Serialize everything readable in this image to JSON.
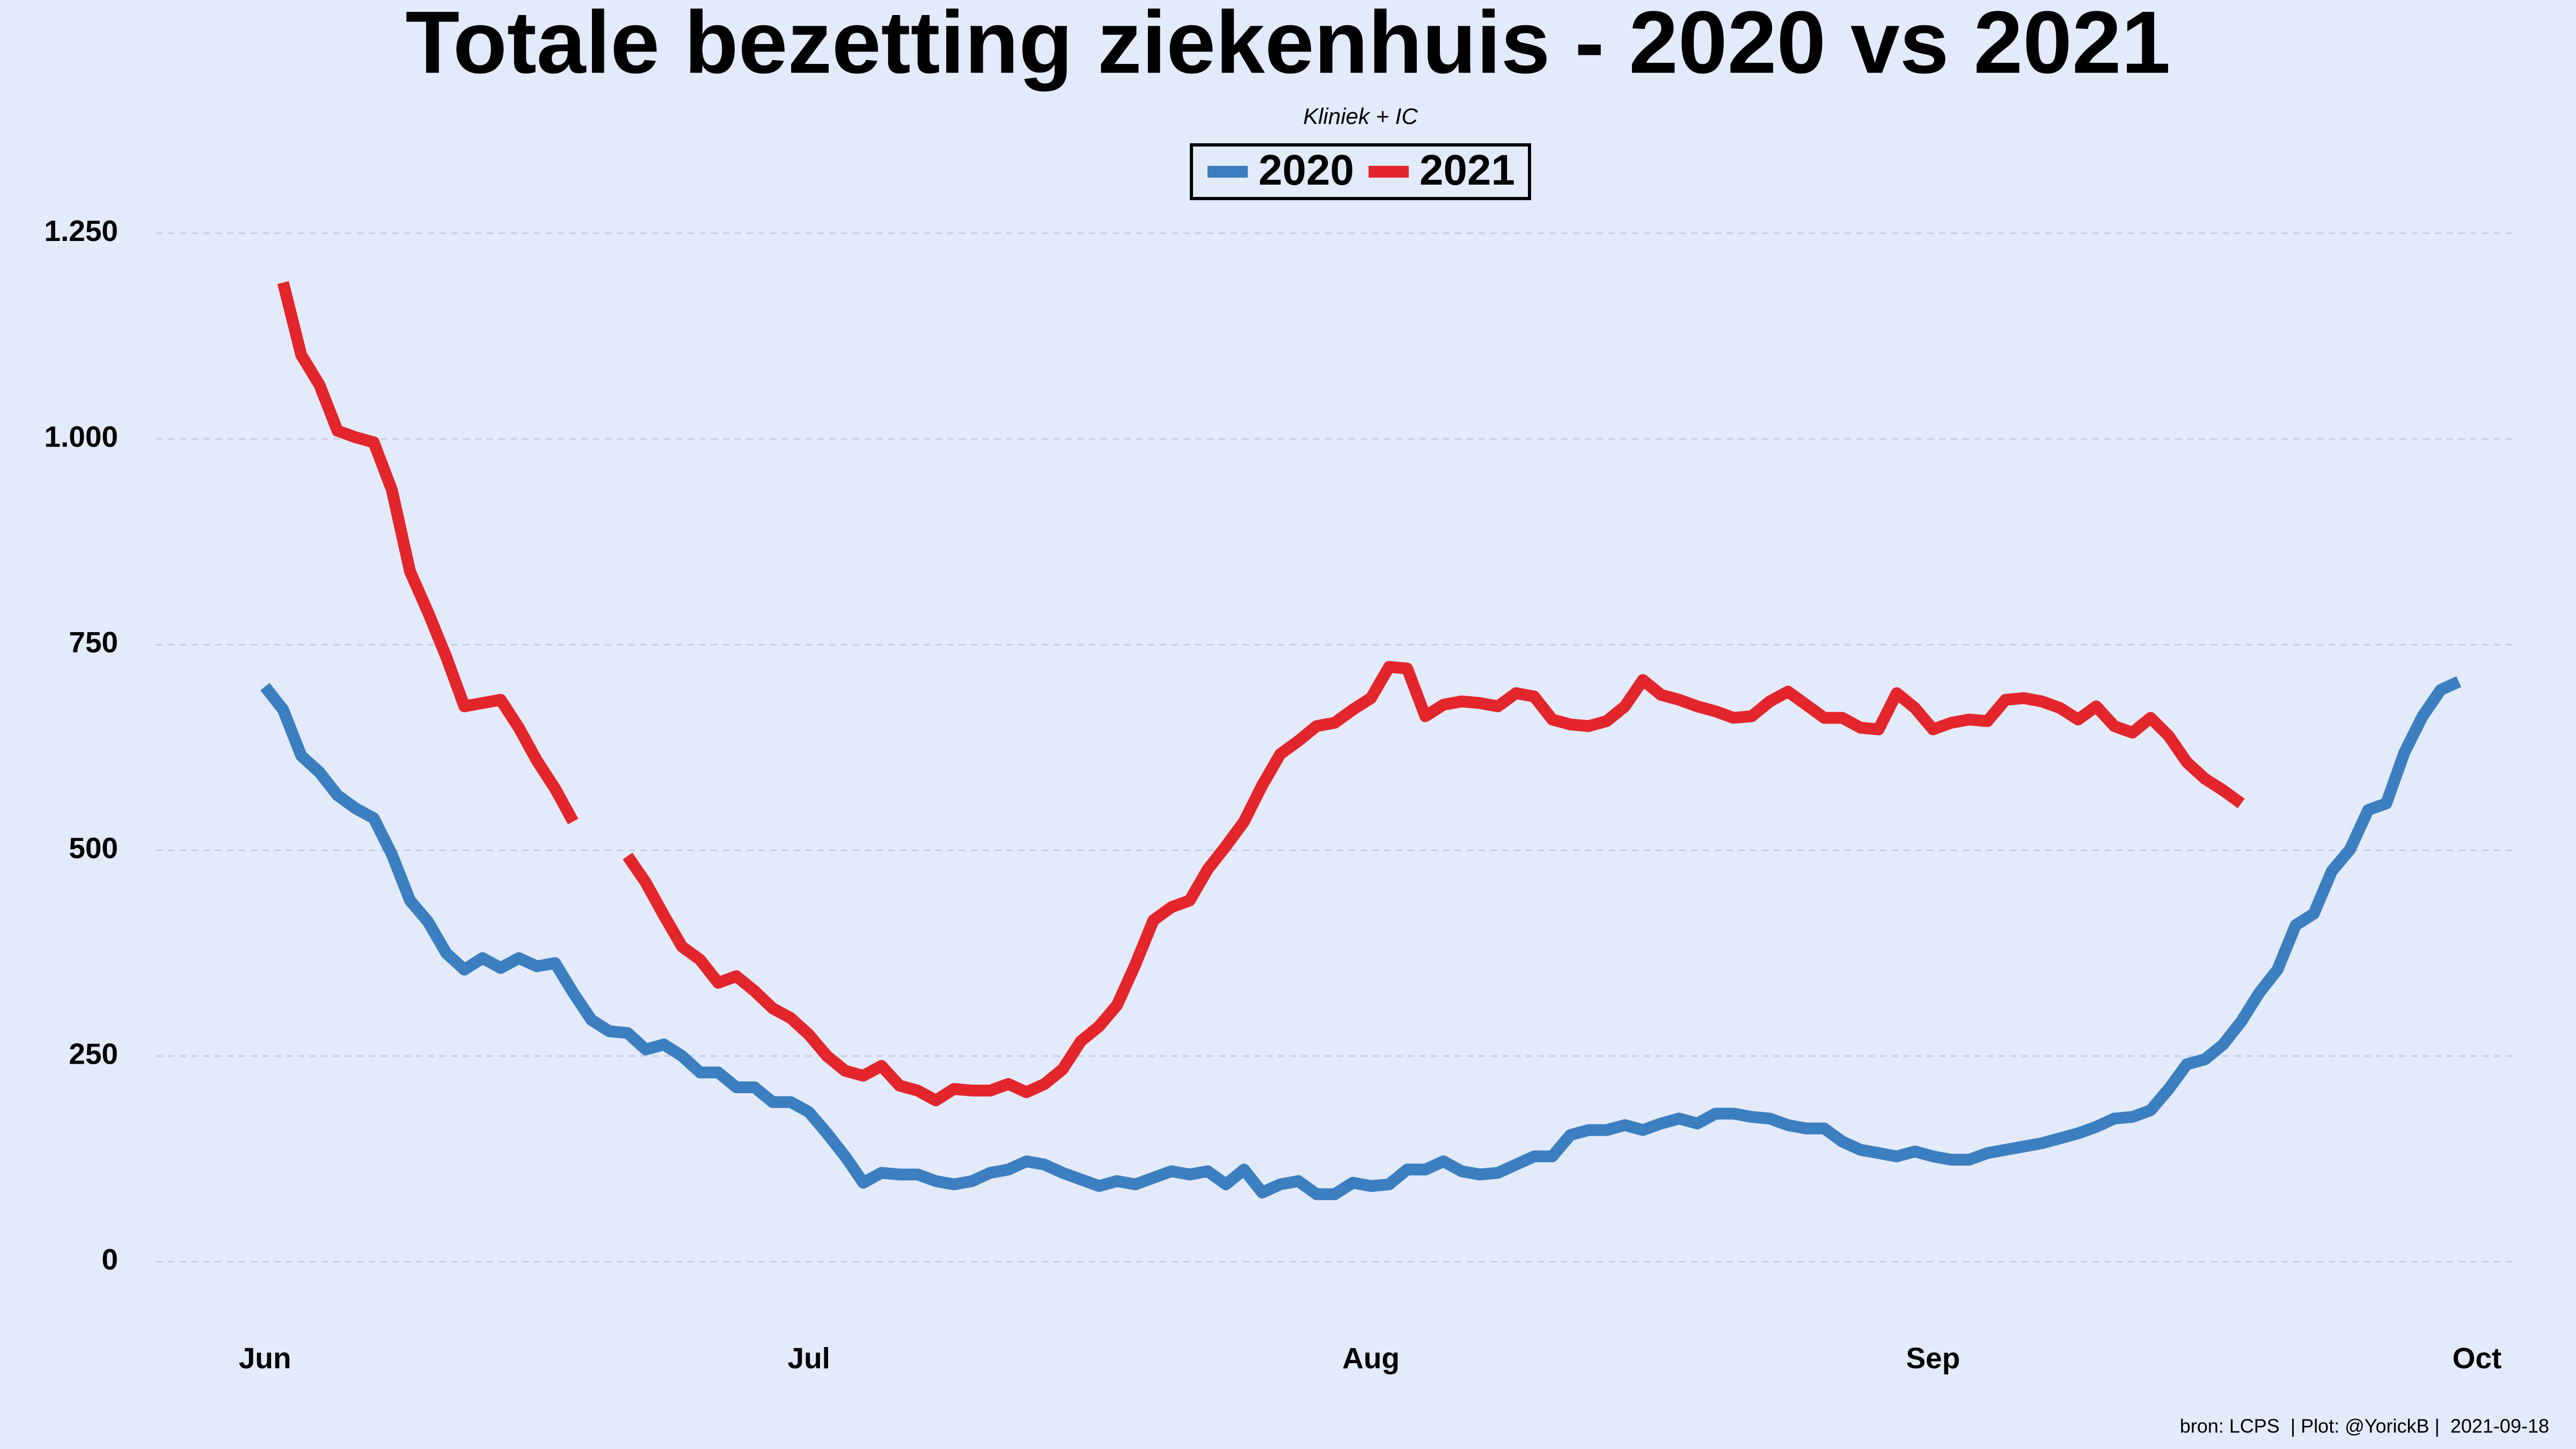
{
  "chart_data": {
    "type": "line",
    "title": "Totale bezetting ziekenhuis - 2020 vs 2021",
    "subtitle": "Kliniek + IC",
    "caption": "bron: LCPS  | Plot: @YorickB |  2021-09-18",
    "x": [
      0,
      1,
      2,
      3,
      4,
      5,
      6,
      7,
      8,
      9,
      10,
      11,
      12,
      13,
      14,
      15,
      16,
      17,
      18,
      19,
      20,
      21,
      22,
      23,
      24,
      25,
      26,
      27,
      28,
      29,
      30,
      31,
      32,
      33,
      34,
      35,
      36,
      37,
      38,
      39,
      40,
      41,
      42,
      43,
      44,
      45,
      46,
      47,
      48,
      49,
      50,
      51,
      52,
      53,
      54,
      55,
      56,
      57,
      58,
      59,
      60,
      61,
      62,
      63,
      64,
      65,
      66,
      67,
      68,
      69,
      70,
      71,
      72,
      73,
      74,
      75,
      76,
      77,
      78,
      79,
      80,
      81,
      82,
      83,
      84,
      85,
      86,
      87,
      88,
      89,
      90,
      91,
      92,
      93,
      94,
      95,
      96,
      97,
      98,
      99,
      100,
      101,
      102,
      103,
      104,
      105,
      106,
      107,
      108,
      109,
      110,
      111,
      112,
      113,
      114,
      115,
      116,
      117,
      118,
      119,
      120,
      121
    ],
    "series": [
      {
        "name": "2020",
        "color": "#3c7fc0",
        "values": [
          699,
          671,
          615,
          595,
          567,
          551,
          539,
          495,
          439,
          413,
          375,
          355,
          369,
          357,
          369,
          359,
          363,
          327,
          294,
          280,
          278,
          258,
          264,
          250,
          230,
          230,
          212,
          212,
          194,
          194,
          182,
          156,
          128,
          96,
          108,
          106,
          106,
          98,
          94,
          98,
          108,
          112,
          122,
          118,
          108,
          100,
          92,
          98,
          94,
          102,
          110,
          106,
          110,
          94,
          112,
          84,
          94,
          98,
          82,
          82,
          96,
          92,
          94,
          112,
          112,
          122,
          110,
          106,
          108,
          118,
          128,
          128,
          154,
          160,
          160,
          166,
          160,
          168,
          174,
          168,
          180,
          180,
          176,
          174,
          166,
          162,
          162,
          146,
          136,
          132,
          128,
          134,
          128,
          124,
          124,
          132,
          136,
          140,
          144,
          150,
          156,
          164,
          174,
          176,
          184,
          210,
          240,
          246,
          264,
          292,
          327,
          355,
          409,
          423,
          475,
          501,
          549,
          557,
          619,
          663,
          695,
          705
        ]
      },
      {
        "name": "2021",
        "color": "#e3262b",
        "values": [
          null,
          1190,
          1102,
          1066,
          1010,
          1002,
          996,
          938,
          839,
          789,
          735,
          675,
          679,
          683,
          649,
          609,
          575,
          535,
          null,
          null,
          493,
          461,
          421,
          383,
          367,
          339,
          347,
          329,
          308,
          296,
          276,
          250,
          232,
          226,
          238,
          214,
          208,
          196,
          210,
          208,
          208,
          216,
          206,
          216,
          234,
          268,
          286,
          312,
          361,
          415,
          431,
          439,
          477,
          505,
          535,
          579,
          617,
          633,
          651,
          655,
          671,
          685,
          723,
          721,
          663,
          677,
          681,
          679,
          675,
          691,
          687,
          659,
          653,
          651,
          657,
          675,
          707,
          689,
          683,
          675,
          669,
          661,
          663,
          681,
          693,
          677,
          661,
          661,
          649,
          647,
          691,
          673,
          647,
          655,
          659,
          657,
          683,
          685,
          681,
          673,
          659,
          675,
          651,
          643,
          661,
          639,
          607,
          587,
          573,
          557,
          null,
          null,
          null,
          null,
          null,
          null,
          null,
          null,
          null,
          null,
          null,
          null
        ]
      }
    ],
    "xlim": [
      -6,
      124
    ],
    "xticks": [
      {
        "value": 0,
        "label": "Jun"
      },
      {
        "value": 30,
        "label": "Jul"
      },
      {
        "value": 61,
        "label": "Aug"
      },
      {
        "value": 92,
        "label": "Sep"
      },
      {
        "value": 122,
        "label": "Oct"
      }
    ],
    "ylim": [
      -60,
      1330
    ],
    "yticks": [
      0,
      250,
      500,
      750,
      {
        "value": 1000,
        "label": "1.000"
      },
      {
        "value": 1250,
        "label": "1.250"
      }
    ],
    "grid": true,
    "legend": "top-center"
  }
}
